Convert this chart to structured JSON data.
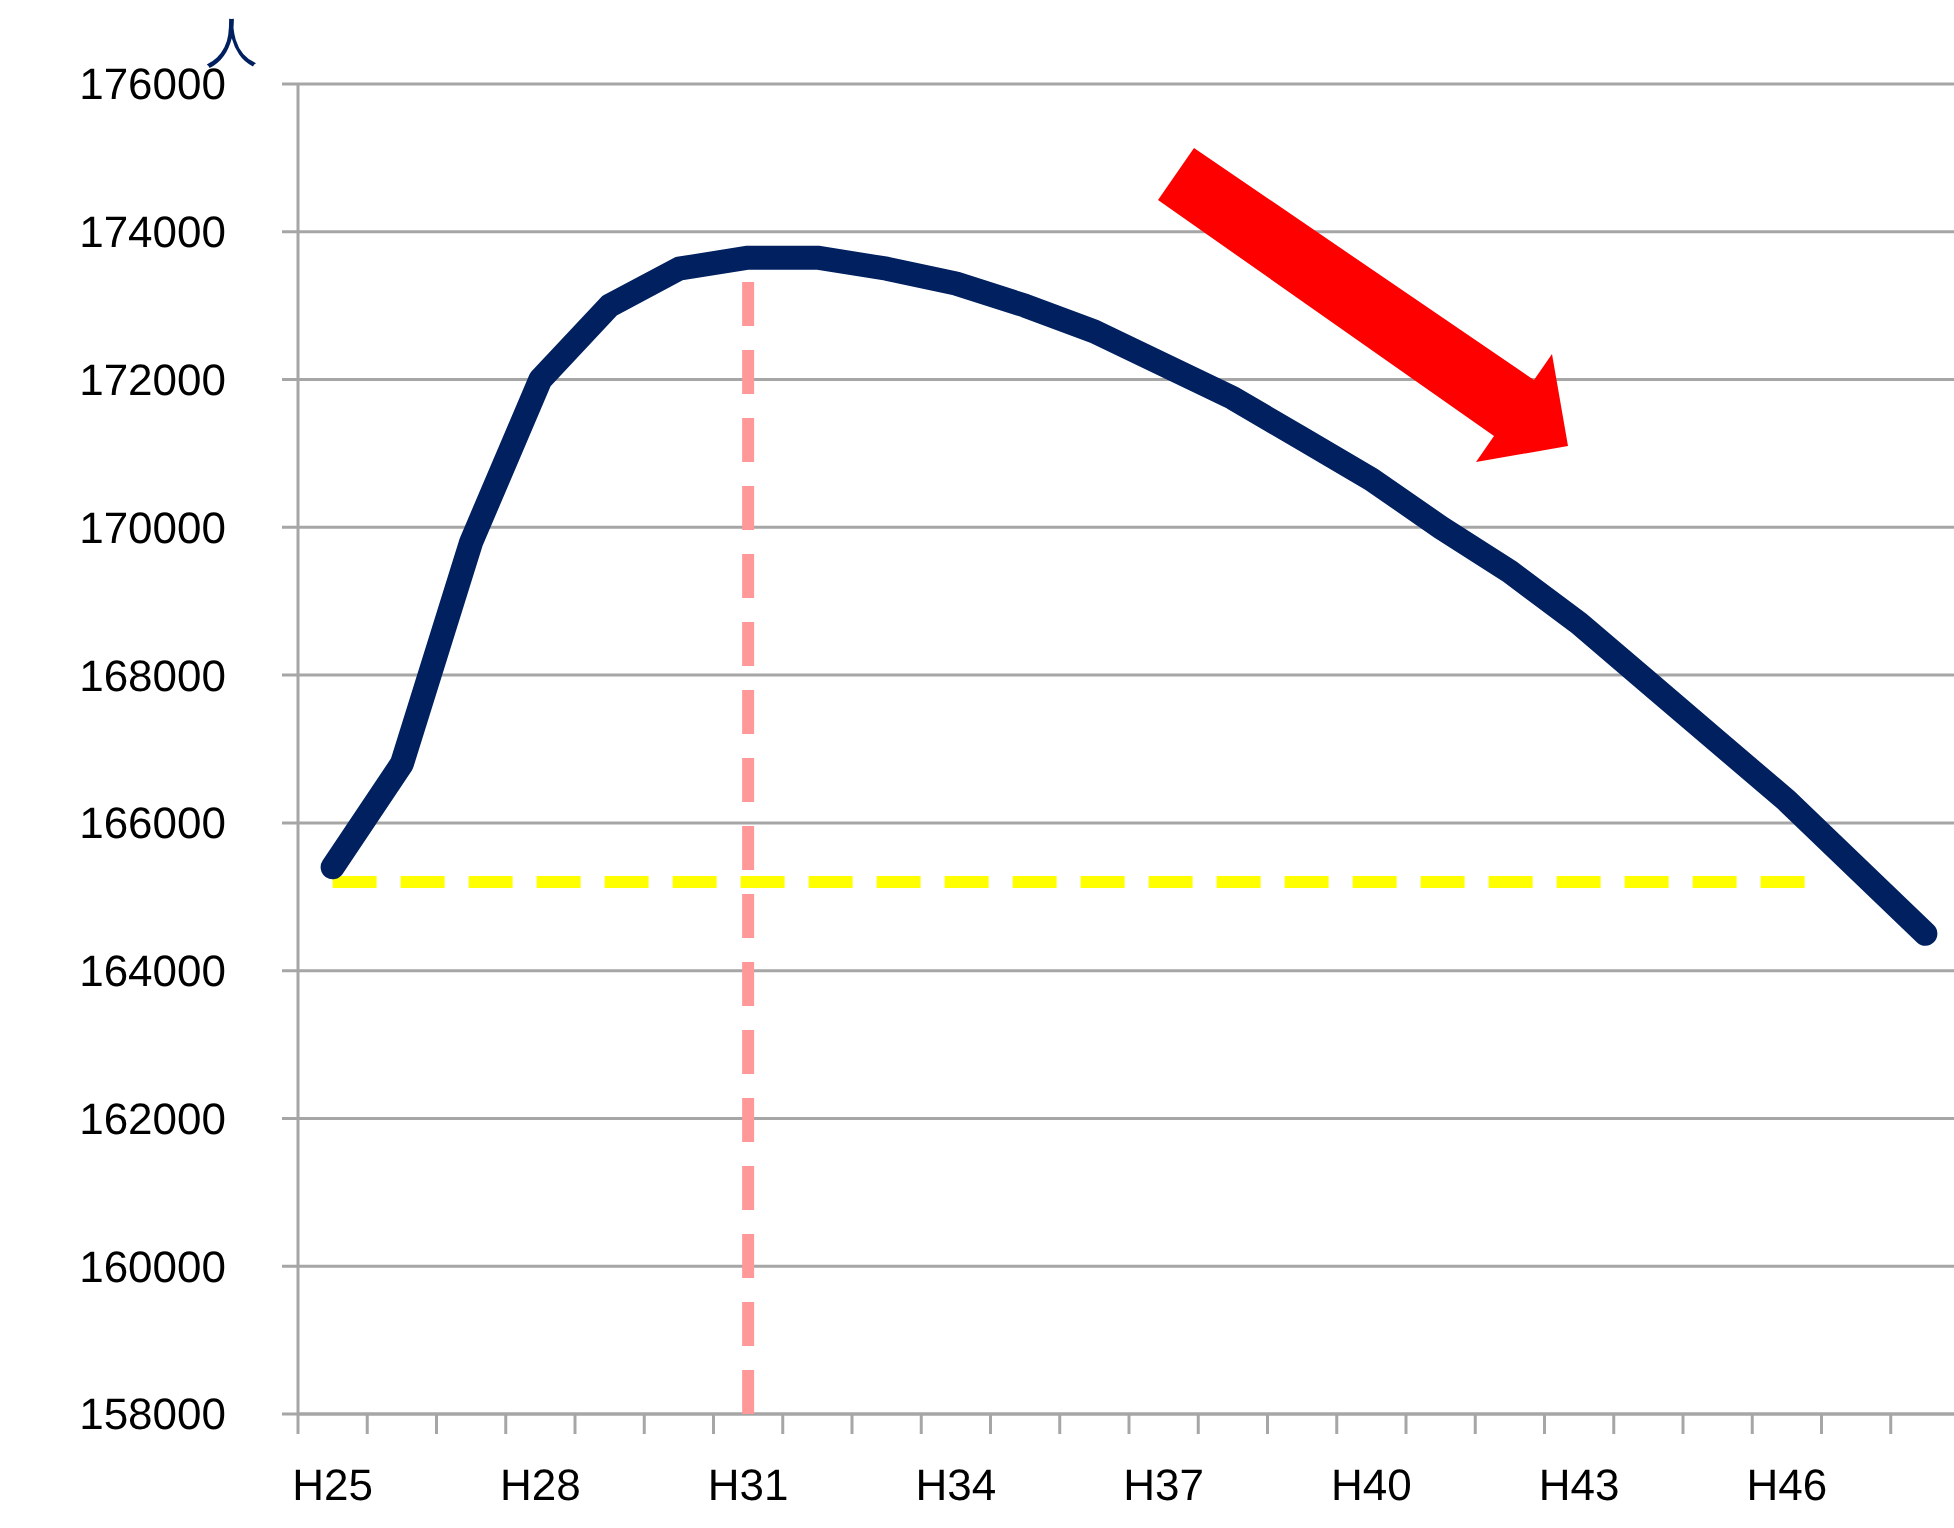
{
  "chart_data": {
    "type": "line",
    "ylabel": "人",
    "categories": [
      "H25",
      null,
      null,
      "H28",
      null,
      null,
      "H31",
      null,
      null,
      "H34",
      null,
      null,
      "H37",
      null,
      null,
      "H40",
      null,
      null,
      "H43",
      null,
      null,
      "H46",
      null,
      null
    ],
    "series": [
      {
        "color": "#002060",
        "values": [
          165400,
          166800,
          169800,
          172000,
          173000,
          173500,
          173650,
          173650,
          173500,
          173300,
          173000,
          172650,
          172200,
          171750,
          171200,
          170650,
          170000,
          169400,
          168700,
          167900,
          167100,
          166300,
          165400,
          164500
        ]
      }
    ],
    "ylim": [
      158000,
      176000
    ],
    "yticks": [
      158000,
      160000,
      162000,
      164000,
      166000,
      168000,
      170000,
      172000,
      174000,
      176000
    ],
    "grid": "y",
    "marker": "none",
    "line_style": "solid",
    "ref_lines": [
      {
        "axis": "y",
        "value": 165200,
        "color": "#ffff00",
        "line_style": "dashed"
      },
      {
        "axis": "x",
        "value": "H31",
        "color": "#ff9999",
        "line_style": "dashed"
      }
    ]
  }
}
